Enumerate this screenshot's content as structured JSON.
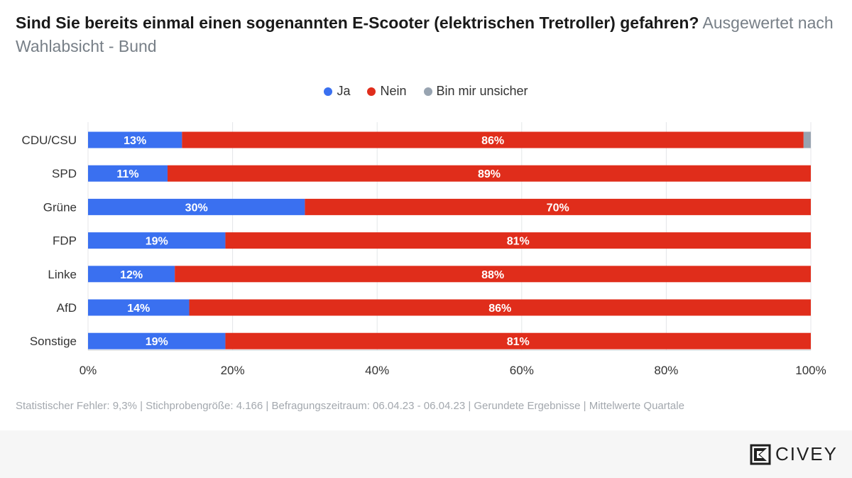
{
  "title": {
    "main": "Sind Sie bereits einmal einen sogenannten E-Scooter (elektrischen Tretroller) gefahren?",
    "sub": "Ausgewertet nach Wahlabsicht - Bund"
  },
  "legend": [
    {
      "label": "Ja",
      "color": "#3a70f0"
    },
    {
      "label": "Nein",
      "color": "#e02d1b"
    },
    {
      "label": "Bin mir unsicher",
      "color": "#98a4b1"
    }
  ],
  "chart_data": {
    "type": "bar",
    "orientation": "horizontal",
    "stacked": true,
    "categories": [
      "CDU/CSU",
      "SPD",
      "Grüne",
      "FDP",
      "Linke",
      "AfD",
      "Sonstige"
    ],
    "series": [
      {
        "name": "Ja",
        "color": "#3a70f0",
        "values": [
          13,
          11,
          30,
          19,
          12,
          14,
          19
        ]
      },
      {
        "name": "Nein",
        "color": "#e02d1b",
        "values": [
          86,
          89,
          70,
          81,
          88,
          86,
          81
        ]
      },
      {
        "name": "Bin mir unsicher",
        "color": "#98a4b1",
        "values": [
          1,
          0,
          0,
          0,
          0,
          0,
          0
        ]
      }
    ],
    "data_labels": [
      [
        "13%",
        "11%",
        "30%",
        "19%",
        "12%",
        "14%",
        "19%"
      ],
      [
        "86%",
        "89%",
        "70%",
        "81%",
        "88%",
        "86%",
        "81%"
      ],
      [
        "",
        "",
        "",
        "",
        "",
        "",
        ""
      ]
    ],
    "xticks": [
      "0%",
      "20%",
      "40%",
      "60%",
      "80%",
      "100%"
    ],
    "xlim": [
      0,
      100
    ],
    "legend_position": "top-center"
  },
  "footnote": "Statistischer Fehler: 9,3% | Stichprobengröße: 4.166 | Befragungszeitraum: 06.04.23 - 06.04.23 | Gerundete Ergebnisse | Mittelwerte Quartale",
  "brand": {
    "name": "CIVEY",
    "icon": "civey-logo-icon"
  }
}
